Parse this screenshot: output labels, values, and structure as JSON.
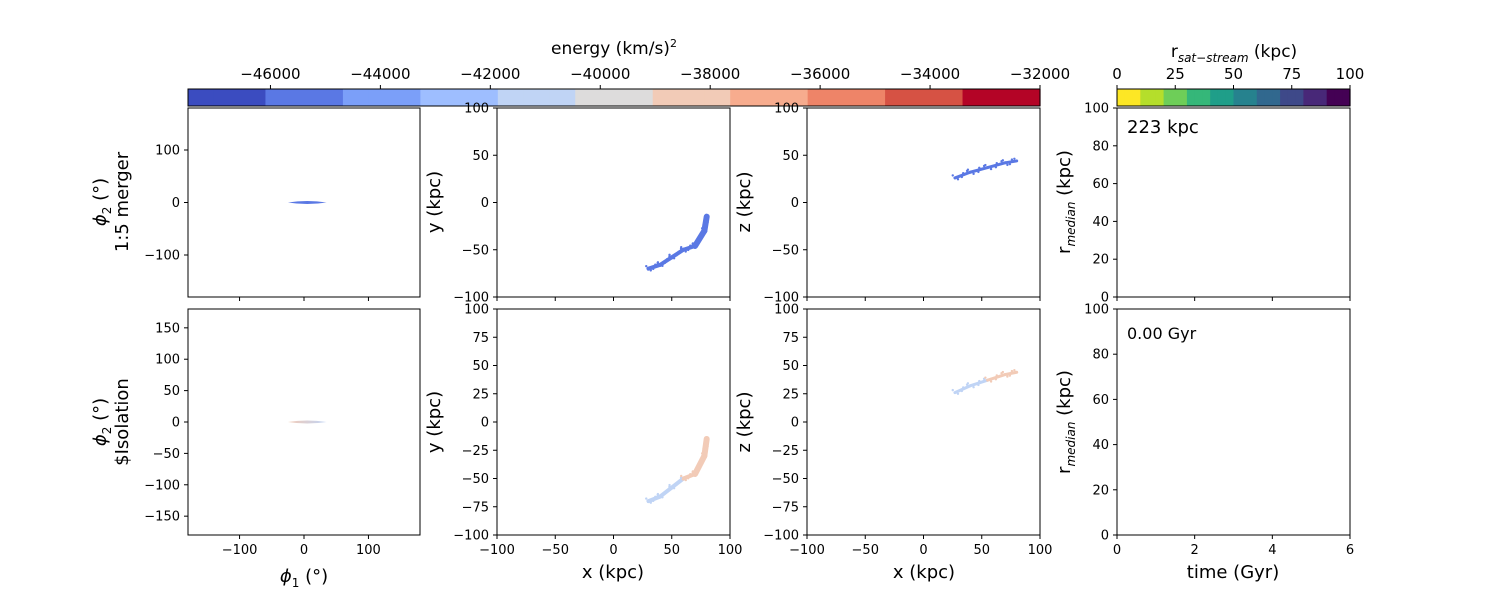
{
  "colorbars": {
    "energy": {
      "label": "energy (km/s)",
      "label_sup": "2",
      "ticks": [
        "−46000",
        "−44000",
        "−42000",
        "−40000",
        "−38000",
        "−36000",
        "−34000",
        "−32000"
      ],
      "tick_values": [
        -46000,
        -44000,
        -42000,
        -40000,
        -38000,
        -36000,
        -34000,
        -32000
      ],
      "range": [
        -47500,
        -32000
      ],
      "colormap": "coolwarm",
      "colors": [
        "#3b4cc0",
        "#5a78e4",
        "#7b9ff9",
        "#9ebeff",
        "#c0d4f5",
        "#dddcdc",
        "#f2cbb7",
        "#f7ac8e",
        "#ee8468",
        "#d65244",
        "#b40426"
      ]
    },
    "rsat": {
      "label_main": "r",
      "label_sub": "sat−stream",
      "label_unit": " (kpc)",
      "ticks": [
        "0",
        "25",
        "50",
        "75",
        "100"
      ],
      "tick_values": [
        0,
        25,
        50,
        75,
        100
      ],
      "range": [
        0,
        100
      ],
      "colormap": "viridis_r",
      "colors": [
        "#fde725",
        "#b5de2b",
        "#6ece58",
        "#35b779",
        "#1f9e89",
        "#26828e",
        "#31688e",
        "#3e4989",
        "#482878",
        "#440154"
      ]
    }
  },
  "rows": [
    {
      "phi2_label_top": "ϕ",
      "phi2_sub": "2",
      "phi2_unit": " (°)",
      "row_label": "1:5 merger",
      "radial_annotation": "223 kpc"
    },
    {
      "phi2_label_top": "ϕ",
      "phi2_sub": "2",
      "phi2_unit": " (°)",
      "row_label": "$Isolation",
      "radial_annotation": "0.00 Gyr"
    }
  ],
  "axes_text": {
    "phi1_xlabel_main": "ϕ",
    "phi1_xlabel_sub": "1",
    "phi1_xlabel_unit": " (°)",
    "y_kpc": "y (kpc)",
    "z_kpc": "z (kpc)",
    "x_kpc": "x (kpc)",
    "rmedian_main": "r",
    "rmedian_sub": "median",
    "rmedian_unit": " (kpc)",
    "time_gyr": "time (Gyr)"
  },
  "chart_data": [
    {
      "type": "scatter",
      "panel": "sky-merger",
      "xlim": [
        -180,
        180
      ],
      "ylim": [
        -180,
        180
      ],
      "yticks": [
        -100,
        0,
        100
      ],
      "stream": {
        "phi1": [
          -25,
          35
        ],
        "phi2": [
          0,
          0
        ],
        "color": "#5a78e4"
      }
    },
    {
      "type": "scatter",
      "panel": "xy-merger",
      "xlim": [
        -100,
        100
      ],
      "ylim": [
        -100,
        100
      ],
      "yticks": [
        -100,
        -50,
        0,
        50,
        100
      ],
      "stream": {
        "x": [
          30,
          40,
          50,
          60,
          70,
          78,
          80
        ],
        "y": [
          -70,
          -66,
          -58,
          -50,
          -46,
          -30,
          -15
        ],
        "color": "#5a78e4"
      }
    },
    {
      "type": "scatter",
      "panel": "xz-merger",
      "xlim": [
        -100,
        100
      ],
      "ylim": [
        -100,
        100
      ],
      "yticks": [
        -100,
        -50,
        0,
        50,
        100
      ],
      "stream": {
        "x": [
          27,
          40,
          55,
          70,
          80
        ],
        "z": [
          26,
          32,
          37,
          42,
          44
        ],
        "color": "#5a78e4"
      }
    },
    {
      "type": "line",
      "panel": "rmedian-merger",
      "xlim": [
        0,
        6
      ],
      "ylim": [
        0,
        100
      ],
      "yticks": [
        0,
        20,
        40,
        60,
        80,
        100
      ]
    },
    {
      "type": "scatter",
      "panel": "sky-isolation",
      "xlim": [
        -180,
        180
      ],
      "ylim": [
        -180,
        180
      ],
      "xticks": [
        -100,
        0,
        100
      ],
      "yticks": [
        -150,
        -100,
        -50,
        0,
        50,
        100,
        150
      ],
      "stream": {
        "phi1": [
          -25,
          35
        ],
        "phi2": [
          0,
          0
        ],
        "colors": [
          "#f2cbb7",
          "#c0d4f5"
        ]
      }
    },
    {
      "type": "scatter",
      "panel": "xy-isolation",
      "xlim": [
        -100,
        100
      ],
      "ylim": [
        -100,
        100
      ],
      "xticks": [
        -100,
        -50,
        0,
        50,
        100
      ],
      "yticks": [
        -100,
        -75,
        -50,
        -25,
        0,
        25,
        50,
        75,
        100
      ],
      "stream": {
        "x": [
          30,
          40,
          50,
          60,
          70,
          78,
          80
        ],
        "y": [
          -70,
          -66,
          -58,
          -50,
          -46,
          -30,
          -15
        ],
        "colors": [
          "#c0d4f5",
          "#f2cbb7"
        ]
      }
    },
    {
      "type": "scatter",
      "panel": "xz-isolation",
      "xlim": [
        -100,
        100
      ],
      "ylim": [
        -100,
        100
      ],
      "xticks": [
        -100,
        -50,
        0,
        50,
        100
      ],
      "yticks": [
        -100,
        -75,
        -50,
        -25,
        0,
        25,
        50,
        75,
        100
      ],
      "stream": {
        "x": [
          27,
          40,
          55,
          70,
          80
        ],
        "z": [
          26,
          32,
          37,
          42,
          44
        ],
        "colors": [
          "#c0d4f5",
          "#f2cbb7"
        ]
      }
    },
    {
      "type": "line",
      "panel": "rmedian-isolation",
      "xlim": [
        0,
        6
      ],
      "ylim": [
        0,
        100
      ],
      "xticks": [
        0,
        2,
        4,
        6
      ],
      "yticks": [
        0,
        20,
        40,
        60,
        80,
        100
      ]
    }
  ]
}
